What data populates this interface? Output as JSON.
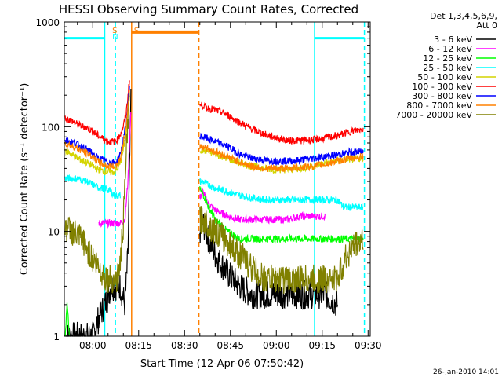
{
  "chart_data": {
    "type": "line",
    "title": "HESSI Observing Summary Count Rates, Corrected",
    "xlabel": "Start Time (12-Apr-06 07:50:42)",
    "ylabel": "Corrected Count Rate (s⁻¹ detector⁻¹)",
    "yscale": "log",
    "ylim": [
      1,
      1000
    ],
    "xlim_minutes_after_0800": [
      -9.3,
      90.7
    ],
    "x_tick_labels": [
      "08:00",
      "08:15",
      "08:30",
      "08:45",
      "09:00",
      "09:15",
      "09:30"
    ],
    "y_tick_labels": [
      "1",
      "10",
      "100",
      "1000"
    ],
    "grid": false,
    "legend_position": "right",
    "legend_header": [
      "Det 1,3,4,5,6,9,",
      "Att 0"
    ],
    "footer_date": "26-Jan-2010 14:01",
    "colors": {
      "3 - 6 keV": "#000000",
      "6 - 12 keV": "#ff00ff",
      "12 - 25 keV": "#00ff00",
      "25 - 50 keV": "#00ffff",
      "50 - 100 keV": "#d4d400",
      "100 - 300 keV": "#ff0000",
      "300 - 800 keV": "#0000ff",
      "800 - 7000 keV": "#ff8000",
      "7000 - 20000 keV": "#808000"
    },
    "series": [
      {
        "name": "3 - 6 keV",
        "x": [
          -9,
          -6,
          -3,
          0,
          2,
          4,
          6,
          7,
          9,
          10.5,
          11.5,
          12.5,
          35,
          36,
          37.5,
          40,
          44,
          48,
          52,
          56,
          60,
          64,
          68,
          72,
          76,
          80
        ],
        "y": [
          1,
          1,
          1,
          1,
          1.5,
          2,
          3,
          3,
          3,
          2,
          6,
          200,
          10,
          12,
          9,
          6,
          4,
          3,
          2.5,
          2.5,
          2.5,
          2.5,
          2.5,
          2.5,
          2.5,
          2
        ]
      },
      {
        "name": "6 - 12 keV",
        "x": [
          2,
          4,
          6,
          8,
          9,
          10.5,
          11.5,
          12.5,
          35,
          36,
          37.5,
          40,
          44,
          48,
          52,
          56,
          60,
          64,
          68,
          72,
          76
        ],
        "y": [
          12,
          12,
          12,
          12,
          12,
          13,
          30,
          150,
          21,
          24,
          19,
          16,
          14,
          13,
          13,
          13,
          13,
          13,
          14,
          14,
          14
        ]
      },
      {
        "name": "12 - 25 keV",
        "x": [
          -9,
          -8.4,
          -7.6,
          35,
          36,
          37.5,
          40,
          44,
          48,
          52,
          56,
          60,
          64,
          68,
          72,
          76,
          80,
          84,
          88.5
        ],
        "y": [
          1,
          2,
          1,
          25,
          23,
          18,
          13,
          10,
          8.5,
          8.5,
          8.5,
          8.5,
          8.5,
          8.5,
          8.5,
          8.5,
          8.5,
          8.5,
          8.5
        ]
      },
      {
        "name": "25 - 50 keV",
        "x": [
          -9,
          -5,
          -2,
          0,
          2,
          4,
          6,
          7,
          9,
          35,
          36,
          37.5,
          40,
          44,
          48,
          52,
          56,
          60,
          64,
          68,
          72,
          76,
          80,
          82,
          84,
          88.5
        ],
        "y": [
          32,
          32,
          30,
          28,
          26,
          26,
          24,
          22,
          22,
          30,
          30,
          28,
          26,
          24,
          22,
          21,
          20,
          20,
          20,
          20,
          20,
          20,
          20,
          17,
          17,
          17
        ]
      },
      {
        "name": "50 - 100 keV",
        "x": [
          -9,
          -7,
          -5,
          -3,
          -1,
          1,
          3,
          5,
          7,
          8,
          9,
          10,
          11,
          12,
          35,
          36,
          37.5,
          40,
          44,
          48,
          52,
          56,
          60,
          64,
          68,
          72,
          76,
          80,
          84,
          88.5
        ],
        "y": [
          60,
          55,
          50,
          47,
          44,
          40,
          38,
          37,
          37,
          39,
          45,
          60,
          90,
          200,
          60,
          60,
          58,
          55,
          50,
          45,
          42,
          40,
          39,
          39,
          40,
          42,
          45,
          47,
          49,
          50
        ]
      },
      {
        "name": "100 - 300 keV",
        "x": [
          -9,
          -7,
          -5,
          -3,
          -1,
          1,
          3,
          5,
          7,
          8,
          9,
          10,
          11,
          12,
          35,
          36,
          37.5,
          40,
          44,
          48,
          52,
          56,
          60,
          64,
          68,
          72,
          76,
          80,
          84,
          88.5
        ],
        "y": [
          120,
          115,
          105,
          100,
          95,
          85,
          78,
          72,
          72,
          75,
          85,
          100,
          140,
          280,
          160,
          160,
          150,
          145,
          130,
          110,
          95,
          85,
          78,
          74,
          74,
          75,
          78,
          82,
          90,
          95
        ]
      },
      {
        "name": "300 - 800 keV",
        "x": [
          -9,
          -7,
          -5,
          -3,
          -1,
          1,
          3,
          5,
          7,
          8,
          9,
          10,
          11,
          12,
          35,
          36,
          37.5,
          40,
          44,
          48,
          52,
          56,
          60,
          64,
          68,
          72,
          76,
          80,
          84,
          88.5
        ],
        "y": [
          75,
          72,
          68,
          63,
          58,
          52,
          48,
          46,
          45,
          47,
          55,
          75,
          110,
          240,
          80,
          80,
          77,
          72,
          65,
          55,
          50,
          48,
          47,
          47,
          48,
          50,
          52,
          54,
          57,
          58
        ]
      },
      {
        "name": "800 - 7000 keV",
        "x": [
          -9,
          -7,
          -5,
          -3,
          -1,
          1,
          3,
          5,
          7,
          8,
          9,
          10,
          11,
          12,
          35,
          36,
          37.5,
          40,
          44,
          48,
          52,
          56,
          60,
          64,
          68,
          72,
          76,
          80,
          84,
          88.5
        ],
        "y": [
          70,
          66,
          62,
          58,
          54,
          48,
          44,
          42,
          42,
          44,
          50,
          70,
          100,
          220,
          65,
          65,
          62,
          58,
          52,
          46,
          42,
          40,
          40,
          40,
          41,
          42,
          44,
          47,
          50,
          52
        ]
      },
      {
        "name": "7000 - 20000 keV",
        "x": [
          -9,
          -7,
          -5,
          -3,
          -1,
          1,
          3,
          5,
          7,
          8,
          9,
          10,
          11,
          12,
          35,
          36,
          37.5,
          40,
          44,
          48,
          52,
          56,
          60,
          64,
          68,
          72,
          76,
          80,
          82,
          84,
          86,
          88.5
        ],
        "y": [
          11,
          10,
          9,
          8,
          6,
          5,
          4,
          3.5,
          3.5,
          3.5,
          5,
          12,
          60,
          180,
          13,
          13,
          12,
          10,
          8,
          6,
          4.5,
          3.5,
          3.5,
          3.5,
          3.5,
          3.5,
          3.5,
          3.5,
          5,
          6.5,
          7.5,
          8
        ]
      }
    ],
    "attenuator_level": [
      {
        "x": [
          -9.3,
          3.9
        ],
        "y": 700
      },
      {
        "x": [
          12.7,
          34.7
        ],
        "y": 800
      },
      {
        "x": [
          72.5,
          88.8
        ],
        "y": 700
      }
    ],
    "event_markers": [
      {
        "x": 3.9,
        "color": "#00ffff",
        "style": "solid"
      },
      {
        "x": 7.4,
        "color": "#00ffff",
        "style": "dashed",
        "label": "S"
      },
      {
        "x": 12.7,
        "color": "#ff8000",
        "style": "solid",
        "label": "S"
      },
      {
        "x": 34.7,
        "color": "#ff8000",
        "style": "dashed"
      },
      {
        "x": 72.5,
        "color": "#00ffff",
        "style": "solid"
      },
      {
        "x": 88.8,
        "color": "#00ffff",
        "style": "dashed"
      }
    ],
    "marker_annotations": [
      {
        "text": "S",
        "x": 7.4,
        "color": "#ff8000"
      },
      {
        "text": "N",
        "x": 7.4,
        "color": "#00ffff"
      },
      {
        "text": "S",
        "x": 12.7,
        "color": "#ff8000"
      }
    ]
  }
}
